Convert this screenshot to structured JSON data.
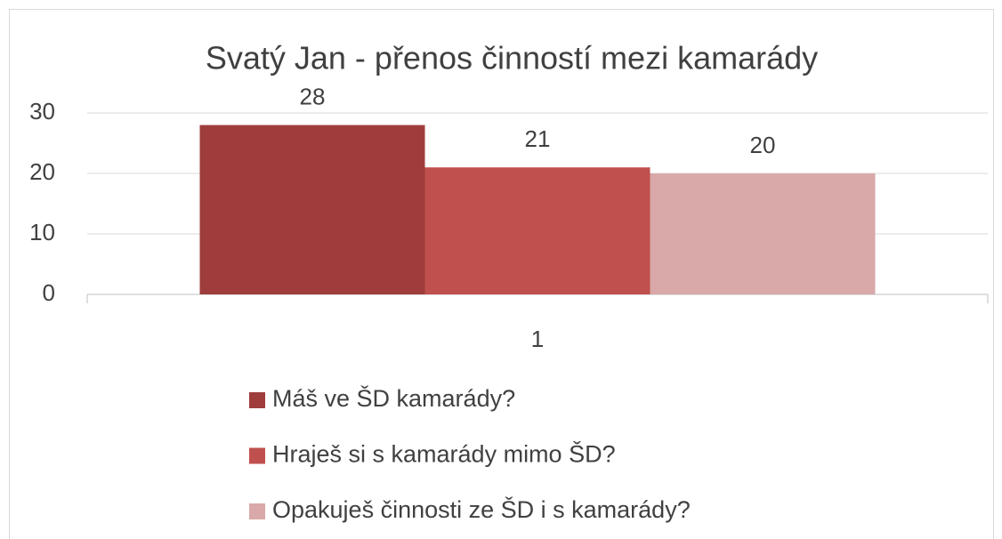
{
  "chart_data": {
    "type": "bar",
    "title": "Svatý Jan - přenos činností mezi kamarády",
    "categories": [
      "1"
    ],
    "series": [
      {
        "name": "Máš ve ŠD kamarády?",
        "color": "#9e3d3c",
        "values": [
          28
        ]
      },
      {
        "name": "Hraješ si s kamarády mimo ŠD?",
        "color": "#c0504d",
        "values": [
          21
        ]
      },
      {
        "name": "Opakuješ činnosti ze ŠD i s kamarády?",
        "color": "#d9a8a8",
        "values": [
          20
        ]
      }
    ],
    "ylim": [
      0,
      30
    ],
    "yticks": [
      0,
      10,
      20,
      30
    ],
    "grid": true,
    "legend": "bottom"
  }
}
